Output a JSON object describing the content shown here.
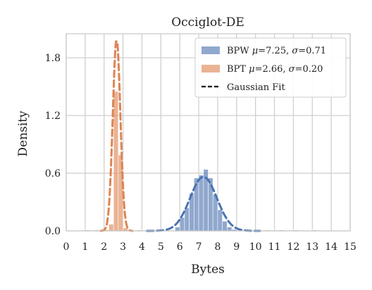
{
  "chart_data": {
    "type": "bar",
    "title": "Occiglot-DE",
    "xlabel": "Bytes",
    "ylabel": "Density",
    "xlim": [
      0,
      15
    ],
    "ylim": [
      0,
      2.05
    ],
    "xticks": [
      "0",
      "1",
      "2",
      "3",
      "4",
      "5",
      "6",
      "7",
      "8",
      "9",
      "10",
      "11",
      "12",
      "13",
      "14",
      "15"
    ],
    "yticks": [
      "0.0",
      "0.6",
      "1.2",
      "1.8"
    ],
    "grid": true,
    "legend_position": "top-right",
    "colors": {
      "bpw": "#4c72b0",
      "bpt": "#dd8452",
      "fit": "#000000"
    },
    "series": [
      {
        "name": "BPW μ=7.25, σ=0.71",
        "legend": {
          "prefix": "BPW ",
          "mu": "μ",
          "mu_value": "=7.25, ",
          "sigma": "σ",
          "sigma_value": "=0.71"
        },
        "mean": 7.25,
        "std": 0.71,
        "bin_width": 0.25,
        "bins": [
          {
            "x": 5.75,
            "y": 0.04
          },
          {
            "x": 6.0,
            "y": 0.14
          },
          {
            "x": 6.25,
            "y": 0.24
          },
          {
            "x": 6.5,
            "y": 0.39
          },
          {
            "x": 6.75,
            "y": 0.55
          },
          {
            "x": 7.0,
            "y": 0.58
          },
          {
            "x": 7.25,
            "y": 0.64
          },
          {
            "x": 7.5,
            "y": 0.55
          },
          {
            "x": 7.75,
            "y": 0.38
          },
          {
            "x": 8.0,
            "y": 0.22
          },
          {
            "x": 8.25,
            "y": 0.1
          },
          {
            "x": 8.5,
            "y": 0.04
          },
          {
            "x": 8.75,
            "y": 0.015
          }
        ]
      },
      {
        "name": "BPT μ=2.66, σ=0.20",
        "legend": {
          "prefix": "BPT ",
          "mu": "μ",
          "mu_value": "=2.66, ",
          "sigma": "σ",
          "sigma_value": "=0.20"
        },
        "mean": 2.66,
        "std": 0.2,
        "bin_width": 0.25,
        "bins": [
          {
            "x": 1.0,
            "y": 0.01
          },
          {
            "x": 1.5,
            "y": 0.01
          },
          {
            "x": 1.75,
            "y": 0.01
          },
          {
            "x": 2.0,
            "y": 0.01
          },
          {
            "x": 2.25,
            "y": 0.07
          },
          {
            "x": 2.5,
            "y": 1.45
          },
          {
            "x": 2.75,
            "y": 0.79
          },
          {
            "x": 3.0,
            "y": 0.03
          },
          {
            "x": 3.75,
            "y": 0.01
          },
          {
            "x": 4.75,
            "y": 0.01
          },
          {
            "x": 9.5,
            "y": 0.01
          },
          {
            "x": 10.0,
            "y": 0.01
          },
          {
            "x": 10.5,
            "y": 0.01
          },
          {
            "x": 11.25,
            "y": 0.01
          },
          {
            "x": 12.0,
            "y": 0.01
          },
          {
            "x": 13.0,
            "y": 0.01
          }
        ]
      }
    ],
    "fit_legend": "Gaussian Fit"
  }
}
